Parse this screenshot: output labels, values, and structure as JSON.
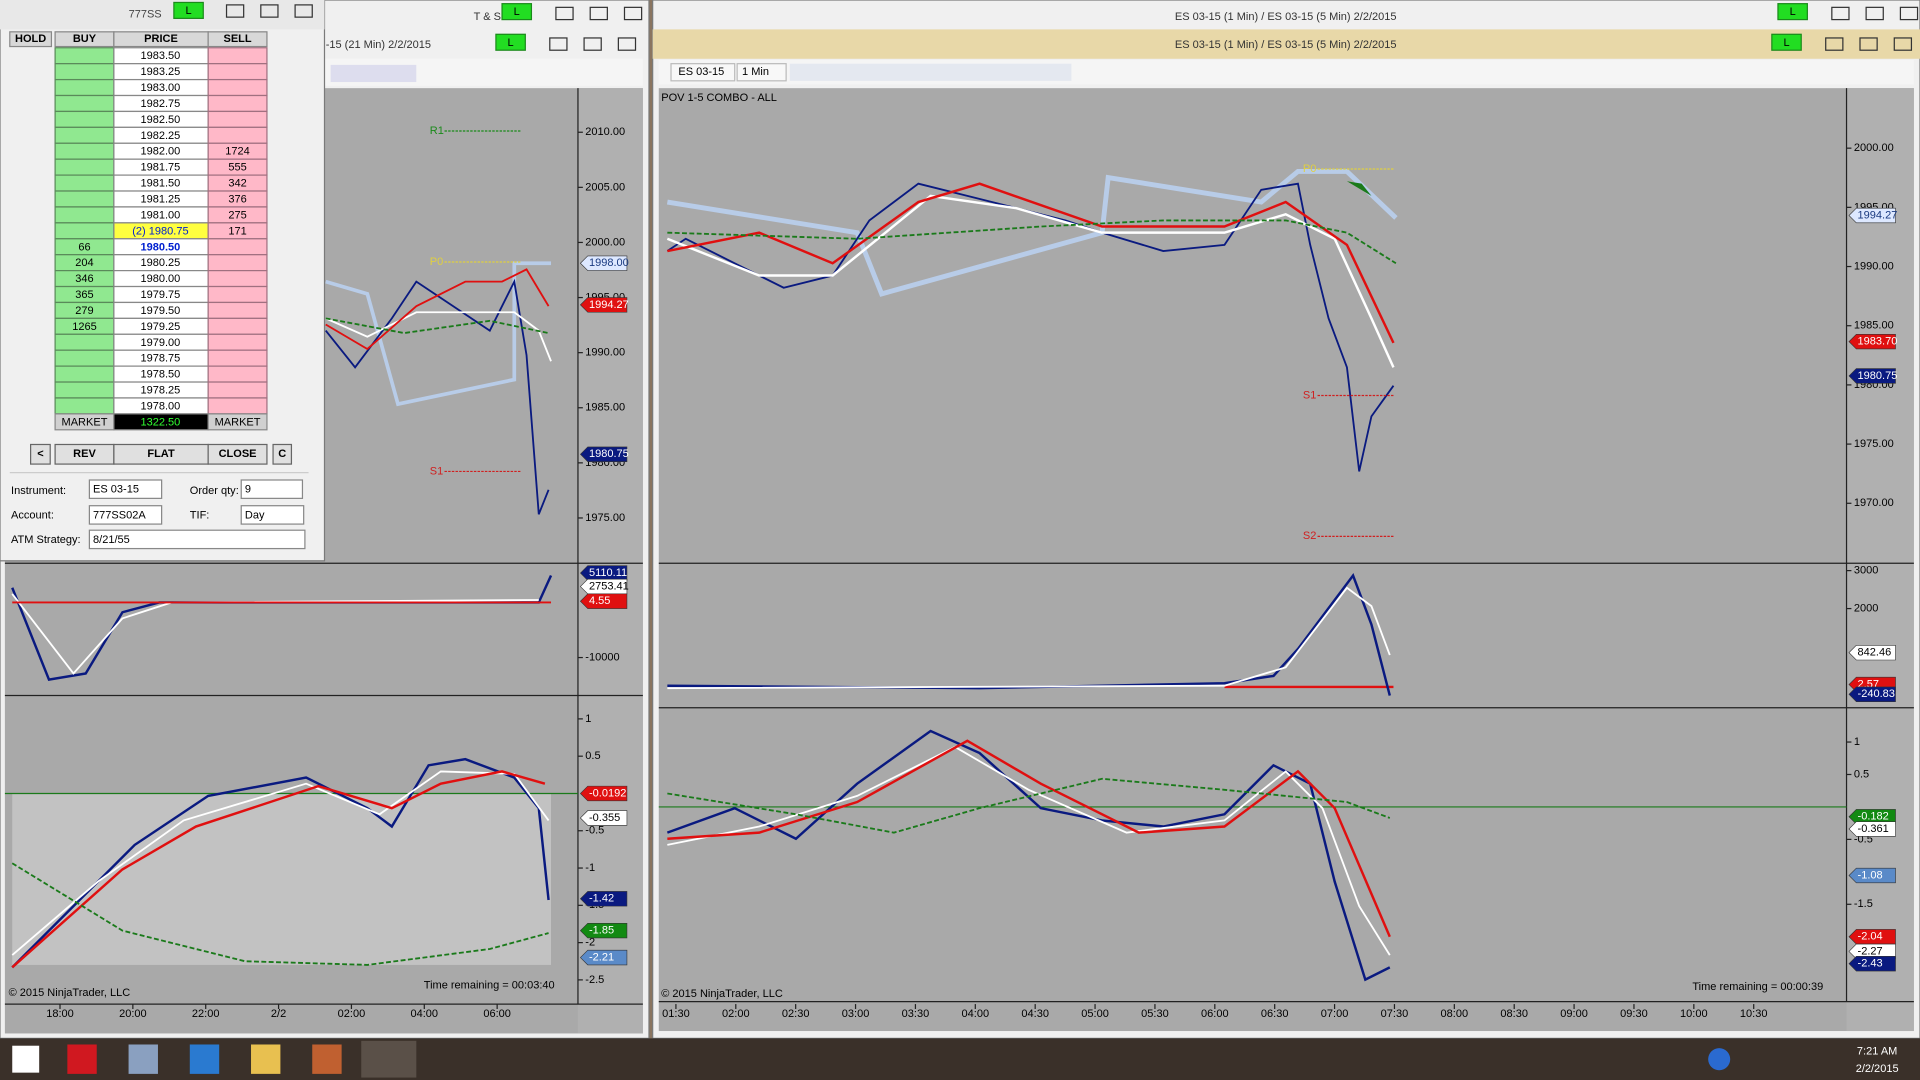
{
  "dom": {
    "title": "777SS",
    "headers": [
      "HOLD",
      "BUY",
      "PRICE",
      "SELL"
    ],
    "rows": [
      {
        "price": "1983.50"
      },
      {
        "price": "1983.25"
      },
      {
        "price": "1983.00"
      },
      {
        "price": "1982.75"
      },
      {
        "price": "1982.50"
      },
      {
        "price": "1982.25"
      },
      {
        "price": "1982.00",
        "sell": "1724"
      },
      {
        "price": "1981.75",
        "sell": "555"
      },
      {
        "price": "1981.50",
        "sell": "342"
      },
      {
        "price": "1981.25",
        "sell": "376"
      },
      {
        "price": "1981.00",
        "sell": "275"
      },
      {
        "price": "(2) 1980.75",
        "sell": "171"
      },
      {
        "buy": "66",
        "price": "1980.50"
      },
      {
        "buy": "204",
        "price": "1980.25"
      },
      {
        "buy": "346",
        "price": "1980.00"
      },
      {
        "buy": "365",
        "price": "1979.75"
      },
      {
        "buy": "279",
        "price": "1979.50"
      },
      {
        "buy": "1265",
        "price": "1979.25"
      },
      {
        "price": "1979.00"
      },
      {
        "price": "1978.75"
      },
      {
        "price": "1978.50"
      },
      {
        "price": "1978.25"
      },
      {
        "price": "1978.00"
      }
    ],
    "market": {
      "buy": "MARKET",
      "price": "1322.50",
      "sell": "MARKET"
    },
    "buttons": [
      "<",
      "REV",
      "FLAT",
      "CLOSE",
      "C"
    ],
    "form": [
      {
        "label": "Instrument:",
        "value": "ES 03-15"
      },
      {
        "label": "Order qty:",
        "value": "9"
      },
      {
        "label": "Account:",
        "value": "777SS02A"
      },
      {
        "label": "TIF:",
        "value": "Day"
      },
      {
        "label": "ATM Strategy:",
        "value": "8/21/55"
      }
    ]
  },
  "status_badge": "L",
  "left_chart": {
    "title": "T & S",
    "subtitle": "-15 (21 Min)  2/2/2015",
    "price_ticks": [
      "2010.00",
      "2005.00",
      "2000.00",
      "1995.00",
      "1990.00",
      "1985.00",
      "1980.00",
      "1975.00"
    ],
    "level_labels": [
      "R1",
      "P0",
      "S1"
    ],
    "price_flags": [
      "1998.00",
      "1994.27",
      "1980.75"
    ],
    "mid_ticks": [
      "-10000"
    ],
    "mid_flags": [
      "5110.11",
      "2753.41",
      "4.55"
    ],
    "osc_ticks": [
      "1",
      "0.5",
      "-0.5",
      "-1",
      "-1.5",
      "-2",
      "-2.5"
    ],
    "osc_flags": [
      "-0.0192",
      "-0.355",
      "-1.42",
      "-1.85",
      "-2.21"
    ],
    "copyright": "© 2015 NinjaTrader, LLC",
    "time_remaining": "Time remaining = 00:03:40",
    "time_labels": [
      "18:00",
      "20:00",
      "22:00",
      "2/2",
      "02:00",
      "04:00",
      "06:00"
    ]
  },
  "right_chart": {
    "title": "ES 03-15 (1 Min) / ES 03-15 (5 Min)  2/2/2015",
    "subtitle": "ES 03-15 (1 Min) / ES 03-15 (5 Min)  2/2/2015",
    "instrument": "ES 03-15",
    "interval": "1 Min",
    "indicator": "POV 1-5 COMBO - ALL",
    "price_ticks": [
      "2000.00",
      "1995.00",
      "1990.00",
      "1985.00",
      "1980.00",
      "1975.00",
      "1970.00"
    ],
    "level_labels": [
      "P0",
      "S1",
      "S2"
    ],
    "price_flags": [
      "1994.27",
      "1983.70",
      "1980.75"
    ],
    "mid_ticks": [
      "3000",
      "2000"
    ],
    "mid_flags": [
      "842.46",
      "2.57",
      "-240.83"
    ],
    "osc_ticks": [
      "1",
      "0.5",
      "-0.5",
      "-1.5"
    ],
    "osc_flags": [
      "-0.182",
      "-0.361",
      "-1.08",
      "-2.04",
      "-2.27",
      "-2.43"
    ],
    "copyright": "© 2015 NinjaTrader, LLC",
    "time_remaining": "Time remaining = 00:00:39",
    "time_labels": [
      "01:30",
      "02:00",
      "02:30",
      "03:00",
      "03:30",
      "04:00",
      "04:30",
      "05:00",
      "05:30",
      "06:00",
      "06:30",
      "07:00",
      "07:30",
      "08:00",
      "08:30",
      "09:00",
      "09:30",
      "10:00",
      "10:30"
    ]
  },
  "taskbar": {
    "time": "7:21 AM",
    "date": "2/2/2015"
  }
}
